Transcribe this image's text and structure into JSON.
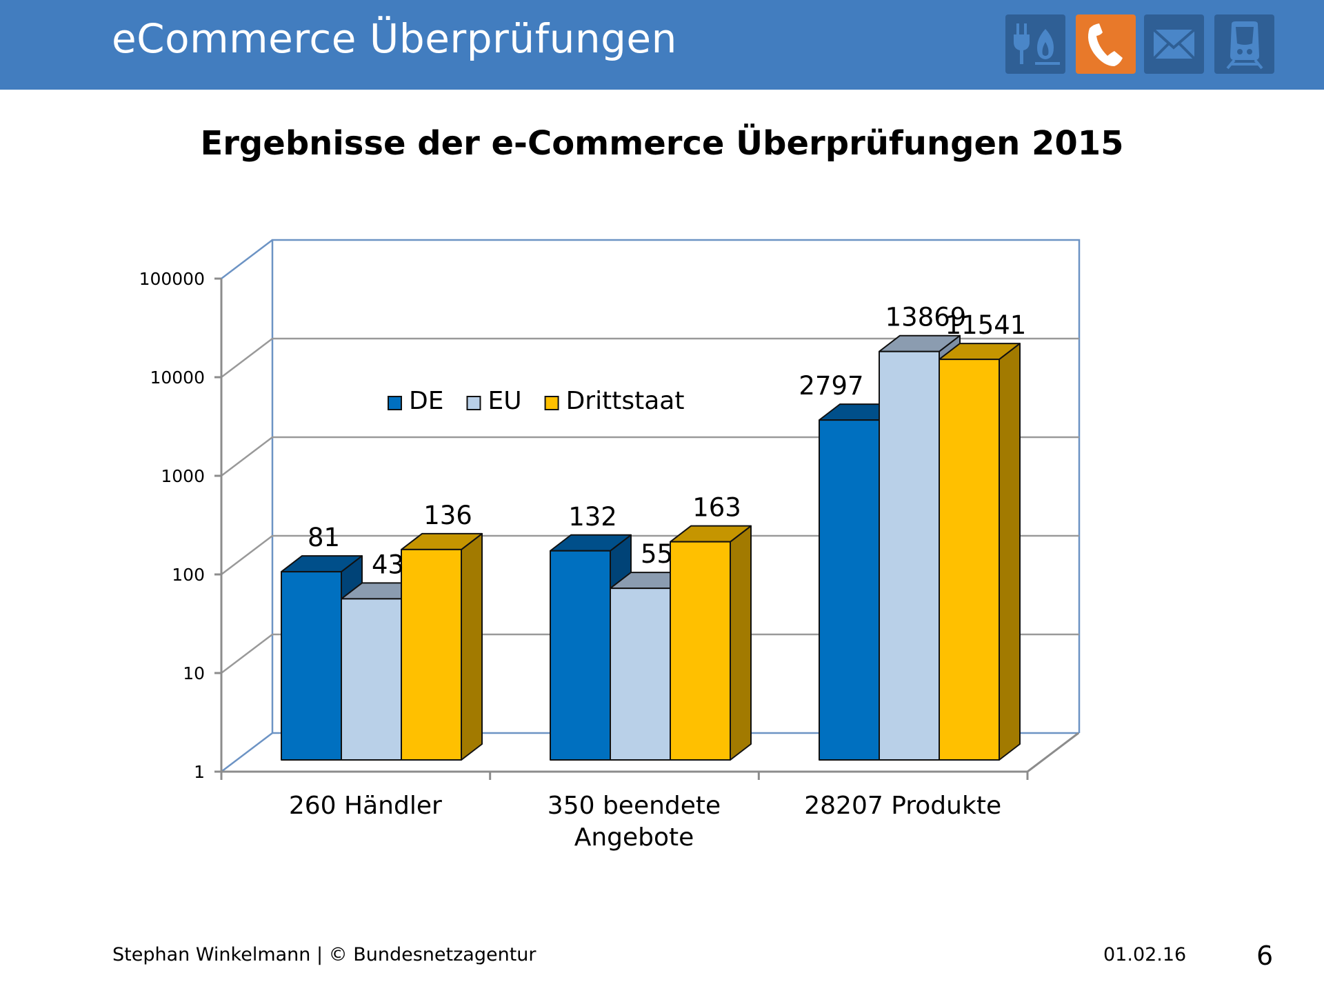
{
  "header": {
    "title": "eCommerce Überprüfungen",
    "icons": [
      {
        "name": "plug-flame-icon",
        "label": "Energie",
        "active": false
      },
      {
        "name": "phone-icon",
        "label": "Telekommunikation",
        "active": true
      },
      {
        "name": "mail-icon",
        "label": "Post",
        "active": false
      },
      {
        "name": "train-icon",
        "label": "Eisenbahn",
        "active": false
      }
    ],
    "bar_color": "#427dbf",
    "active_color": "#e8792a"
  },
  "chart_data": {
    "type": "bar",
    "title": "Ergebnisse der e-Commerce Überprüfungen 2015",
    "categories": [
      [
        "260 Händler"
      ],
      [
        "350 beendete",
        "Angebote"
      ],
      [
        "28207 Produkte"
      ]
    ],
    "series": [
      {
        "name": "DE",
        "values": [
          81,
          132,
          2797
        ],
        "color": "#0070c0",
        "top_color": "#004f8a",
        "side_color": "#004377"
      },
      {
        "name": "EU",
        "values": [
          43,
          55,
          13869
        ],
        "color": "#b9d0e8",
        "top_color": "#8b9cb0",
        "side_color": "#7d8fa5"
      },
      {
        "name": "Drittstaat",
        "values": [
          136,
          163,
          11541
        ],
        "color": "#ffc000",
        "top_color": "#c59500",
        "side_color": "#a27a00"
      }
    ],
    "data_labels": [
      [
        "81",
        "132",
        "2797"
      ],
      [
        "43",
        "55",
        "13869"
      ],
      [
        "136",
        "163",
        "11541"
      ]
    ],
    "yaxis": {
      "scale": "log",
      "ticks": [
        "1",
        "10",
        "100",
        "1000",
        "10000",
        "100000"
      ],
      "ylim": [
        1,
        100000
      ]
    },
    "xlabel": "",
    "ylabel": "",
    "grid": true,
    "legend_position": "top-left-inside",
    "style": "3d-clustered-column"
  },
  "footer": {
    "author": "Stephan Winkelmann | © Bundesnetzagentur",
    "date": "01.02.16",
    "page": "6"
  }
}
